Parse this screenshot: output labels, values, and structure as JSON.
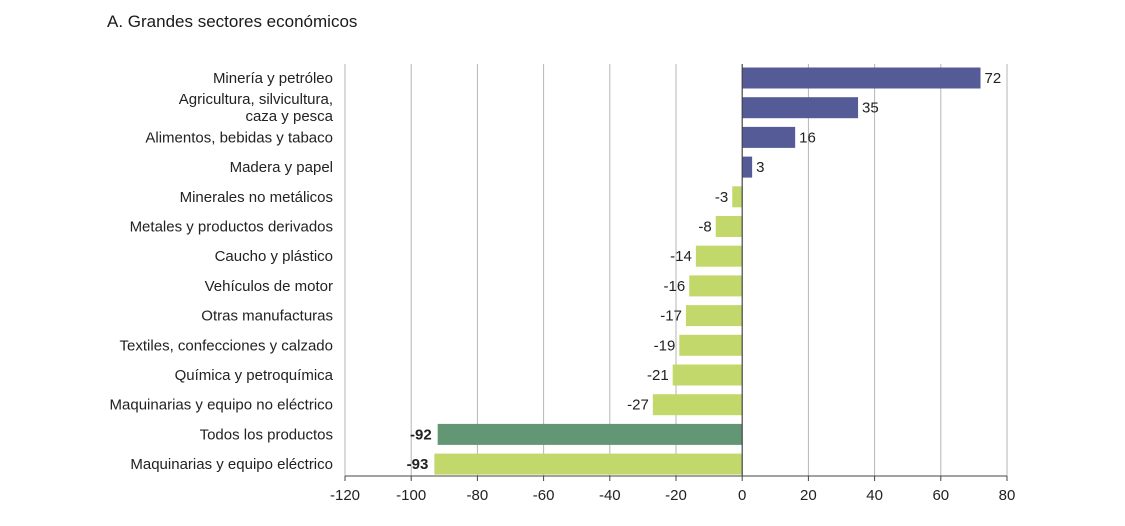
{
  "chart_data": {
    "type": "bar",
    "orientation": "horizontal",
    "title": "A. Grandes sectores económicos",
    "categories": [
      "Minería y petróleo",
      "Agricultura, silvicultura, caza y pesca",
      "Alimentos, bebidas y tabaco",
      "Madera y papel",
      "Minerales no metálicos",
      "Metales y productos derivados",
      "Caucho y plástico",
      "Vehículos de motor",
      "Otras manufacturas",
      "Textiles, confecciones y calzado",
      "Química y petroquímica",
      "Maquinarias y equipo no eléctrico",
      "Todos los productos",
      "Maquinarias y equipo eléctrico"
    ],
    "category_lines": [
      [
        "Minería y petróleo"
      ],
      [
        "Agricultura, silvicultura,",
        "caza y pesca"
      ],
      [
        "Alimentos, bebidas y tabaco"
      ],
      [
        "Madera y papel"
      ],
      [
        "Minerales no metálicos"
      ],
      [
        "Metales y productos derivados"
      ],
      [
        "Caucho y plástico"
      ],
      [
        "Vehículos de motor"
      ],
      [
        "Otras manufacturas"
      ],
      [
        "Textiles, confecciones y calzado"
      ],
      [
        "Química y petroquímica"
      ],
      [
        "Maquinarias y equipo no eléctrico"
      ],
      [
        "Todos los productos"
      ],
      [
        "Maquinarias y equipo eléctrico"
      ]
    ],
    "values": [
      72,
      35,
      16,
      3,
      -3,
      -8,
      -14,
      -16,
      -17,
      -19,
      -21,
      -27,
      -92,
      -93
    ],
    "value_labels": [
      "72",
      "35",
      "16",
      "3",
      "-3",
      "-8",
      "-14",
      "-16",
      "-17",
      "-19",
      "-21",
      "-27",
      "-92",
      "-93"
    ],
    "xlim": [
      -120,
      80
    ],
    "xticks": [
      -120,
      -100,
      -80,
      -60,
      -40,
      -20,
      0,
      20,
      40,
      60,
      80
    ],
    "xlabel": "",
    "ylabel": "",
    "grid": "vertical",
    "colors": {
      "positive": "#555b96",
      "negative": "#c3d86a",
      "total": "#639675",
      "grid": "#b5b5b5",
      "axis": "#444444"
    },
    "highlight_index": 12
  }
}
